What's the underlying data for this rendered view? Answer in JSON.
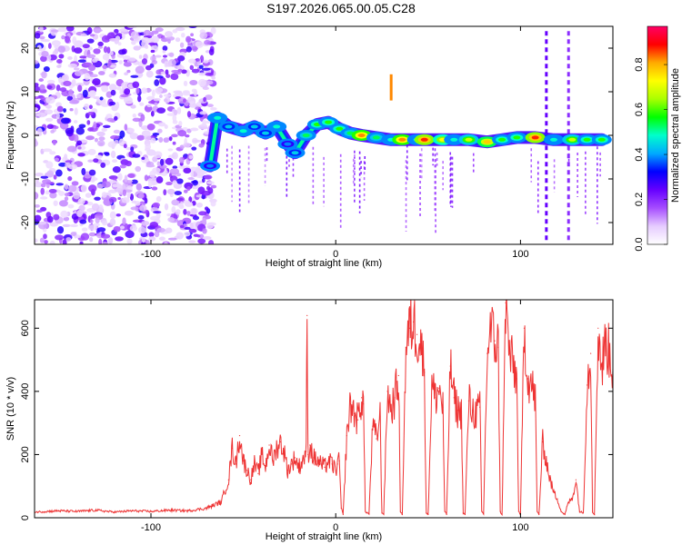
{
  "title": "S197.2026.065.00.05.C28",
  "chart_data": [
    {
      "type": "heatmap",
      "xlabel": "Height of straight line (km)",
      "ylabel": "Frequency (Hz)",
      "xlim": [
        -163,
        150
      ],
      "ylim": [
        -25,
        25
      ],
      "xticks": [
        -100,
        0,
        100
      ],
      "yticks": [
        -20,
        -10,
        0,
        10,
        20
      ],
      "colorbar": {
        "label": "Normalized spectral amplitude",
        "range": [
          0.0,
          0.97
        ],
        "ticks": [
          0.0,
          0.2,
          0.4,
          0.6,
          0.8
        ],
        "tick_labels": [
          "0.0",
          "0.2",
          "0.4",
          "0.6",
          "0.8"
        ],
        "colormap": [
          "#ffffff",
          "#e6ccff",
          "#a64dff",
          "#6600ff",
          "#0000ff",
          "#00aaff",
          "#00ffcc",
          "#00ff00",
          "#aaff00",
          "#ffff00",
          "#ffaa00",
          "#ff0000",
          "#ff0066"
        ]
      },
      "noise_region_x": [
        -163,
        -66
      ],
      "ridge": [
        {
          "x": -68,
          "f": -7,
          "a": 0.4
        },
        {
          "x": -64,
          "f": 4,
          "a": 0.5
        },
        {
          "x": -58,
          "f": 2,
          "a": 0.45
        },
        {
          "x": -50,
          "f": 1,
          "a": 0.5
        },
        {
          "x": -44,
          "f": 2,
          "a": 0.45
        },
        {
          "x": -38,
          "f": 0.5,
          "a": 0.45
        },
        {
          "x": -32,
          "f": 2,
          "a": 0.5
        },
        {
          "x": -26,
          "f": -2,
          "a": 0.4
        },
        {
          "x": -22,
          "f": -4,
          "a": 0.45
        },
        {
          "x": -16,
          "f": 0,
          "a": 0.55
        },
        {
          "x": -10,
          "f": 2.5,
          "a": 0.6
        },
        {
          "x": -4,
          "f": 3,
          "a": 0.6
        },
        {
          "x": 2,
          "f": 1.5,
          "a": 0.6
        },
        {
          "x": 8,
          "f": 0.5,
          "a": 0.55
        },
        {
          "x": 14,
          "f": 0,
          "a": 0.85
        },
        {
          "x": 22,
          "f": -0.5,
          "a": 0.55
        },
        {
          "x": 30,
          "f": -1,
          "a": 0.5
        },
        {
          "x": 36,
          "f": -1,
          "a": 0.85
        },
        {
          "x": 44,
          "f": -1,
          "a": 0.5
        },
        {
          "x": 48,
          "f": -1,
          "a": 0.9
        },
        {
          "x": 58,
          "f": -1,
          "a": 0.75
        },
        {
          "x": 64,
          "f": -1,
          "a": 0.5
        },
        {
          "x": 72,
          "f": -1,
          "a": 0.7
        },
        {
          "x": 82,
          "f": -1.5,
          "a": 0.8
        },
        {
          "x": 90,
          "f": -1,
          "a": 0.6
        },
        {
          "x": 98,
          "f": -0.5,
          "a": 0.6
        },
        {
          "x": 108,
          "f": -0.5,
          "a": 0.9
        },
        {
          "x": 118,
          "f": -1,
          "a": 0.5
        },
        {
          "x": 128,
          "f": -1,
          "a": 0.7
        },
        {
          "x": 136,
          "f": -1,
          "a": 0.6
        },
        {
          "x": 144,
          "f": -1,
          "a": 0.6
        }
      ],
      "streaks": [
        {
          "x": 30,
          "f_from": 8,
          "f_to": 14,
          "a": 0.85
        },
        {
          "x": 114,
          "f_from": -24,
          "f_to": 24,
          "a": 0.25
        },
        {
          "x": 126,
          "f_from": -24,
          "f_to": 24,
          "a": 0.2
        }
      ]
    },
    {
      "type": "line",
      "xlabel": "Height of straight line (km)",
      "ylabel": "SNR (10 * v/v)",
      "xlim": [
        -163,
        150
      ],
      "ylim": [
        0,
        690
      ],
      "xticks": [
        -100,
        0,
        100
      ],
      "yticks": [
        0,
        200,
        400,
        600
      ],
      "color": "#ee3333",
      "series": [
        {
          "name": "SNR",
          "x": [
            -163,
            -150,
            -140,
            -130,
            -120,
            -110,
            -100,
            -90,
            -80,
            -70,
            -62,
            -58,
            -56,
            -54,
            -52,
            -50,
            -48,
            -46,
            -44,
            -42,
            -40,
            -38,
            -36,
            -34,
            -32,
            -30,
            -28,
            -26,
            -24,
            -22,
            -20,
            -18,
            -16,
            -15.5,
            -15,
            -14,
            -12,
            -10,
            -8,
            -6,
            -4,
            -2,
            0,
            1,
            2,
            3,
            4,
            6,
            8,
            10,
            12,
            14,
            15,
            16,
            18,
            20,
            22,
            24,
            25,
            26,
            28,
            30,
            32,
            34,
            35,
            36,
            38,
            40,
            42,
            44,
            46,
            48,
            49,
            50,
            52,
            54,
            56,
            58,
            59,
            60,
            62,
            64,
            66,
            68,
            69,
            70,
            72,
            74,
            76,
            78,
            79,
            80,
            82,
            84,
            86,
            88,
            89,
            90,
            92,
            94,
            96,
            98,
            99,
            100,
            102,
            104,
            106,
            108,
            109,
            110,
            112,
            114,
            116,
            118,
            120,
            122,
            124,
            126,
            128,
            130,
            132,
            134,
            136,
            138,
            139,
            140,
            142,
            144,
            146,
            148,
            150
          ],
          "y": [
            18,
            22,
            20,
            24,
            18,
            22,
            20,
            24,
            22,
            30,
            50,
            120,
            220,
            170,
            260,
            180,
            150,
            120,
            170,
            140,
            200,
            160,
            230,
            180,
            220,
            240,
            210,
            150,
            170,
            190,
            160,
            180,
            210,
            640,
            200,
            230,
            190,
            180,
            170,
            160,
            180,
            170,
            150,
            170,
            180,
            30,
            10,
            260,
            360,
            330,
            310,
            380,
            360,
            20,
            12,
            290,
            250,
            320,
            15,
            12,
            400,
            340,
            380,
            450,
            20,
            10,
            540,
            600,
            620,
            580,
            560,
            460,
            15,
            10,
            420,
            380,
            410,
            350,
            20,
            10,
            480,
            380,
            340,
            330,
            15,
            10,
            370,
            340,
            330,
            350,
            20,
            12,
            520,
            600,
            560,
            540,
            20,
            10,
            680,
            520,
            480,
            440,
            20,
            10,
            600,
            440,
            420,
            380,
            20,
            10,
            240,
            180,
            120,
            80,
            60,
            20,
            10,
            50,
            60,
            120,
            20,
            15,
            420,
            520,
            20,
            10,
            600,
            470,
            560,
            520,
            470
          ]
        }
      ]
    }
  ]
}
